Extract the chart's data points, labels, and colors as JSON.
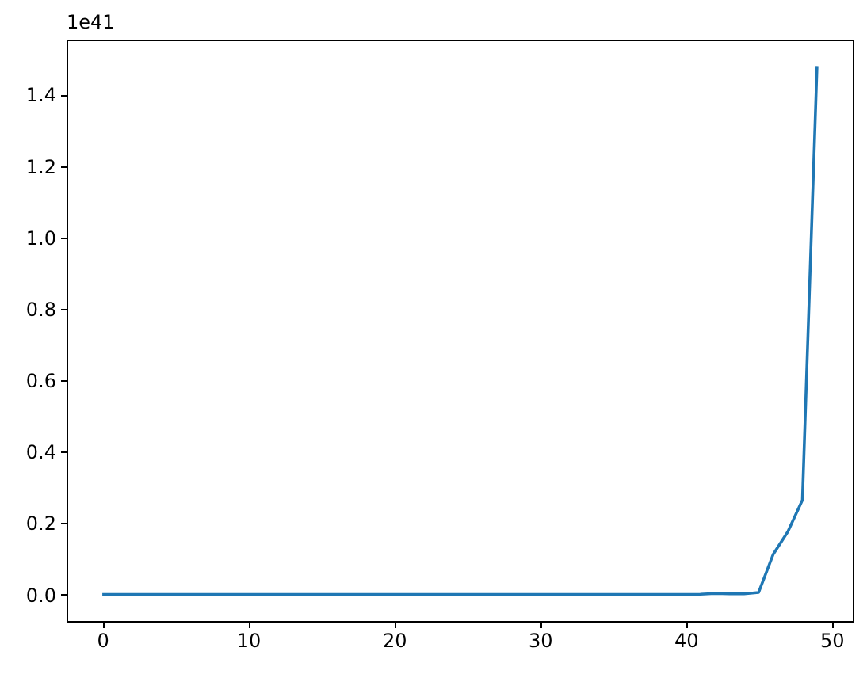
{
  "chart_data": {
    "type": "line",
    "x": [
      0,
      1,
      2,
      3,
      4,
      5,
      6,
      7,
      8,
      9,
      10,
      11,
      12,
      13,
      14,
      15,
      16,
      17,
      18,
      19,
      20,
      21,
      22,
      23,
      24,
      25,
      26,
      27,
      28,
      29,
      30,
      31,
      32,
      33,
      34,
      35,
      36,
      37,
      38,
      39,
      40,
      41,
      42,
      43,
      44,
      45,
      46,
      47,
      48,
      49
    ],
    "series": [
      {
        "color": "#1f77b4",
        "values": [
          0,
          0,
          0,
          0,
          0,
          0,
          0,
          0,
          0,
          0,
          0,
          0,
          0,
          0,
          0,
          0,
          0,
          0,
          0,
          0,
          0,
          0,
          0,
          0,
          0,
          0,
          0,
          0,
          0,
          0,
          0,
          0,
          0,
          0,
          0,
          0,
          0,
          0,
          0,
          0,
          0,
          0.001,
          0.003,
          0.002,
          0.002,
          0.006,
          0.113,
          0.176,
          0.265,
          1.48
        ]
      }
    ],
    "xlim": [
      -2.45,
      51.45
    ],
    "ylim": [
      -0.074,
      1.554
    ],
    "xticks": [
      0,
      10,
      20,
      30,
      40,
      50
    ],
    "yticks": [
      {
        "value": 0,
        "label": "0.0"
      },
      {
        "value": 0.2,
        "label": "0.2"
      },
      {
        "value": 0.4,
        "label": "0.4"
      },
      {
        "value": 0.6,
        "label": "0.6"
      },
      {
        "value": 0.8,
        "label": "0.8"
      },
      {
        "value": 1.0,
        "label": "1.0"
      },
      {
        "value": 1.2,
        "label": "1.2"
      },
      {
        "value": 1.4,
        "label": "1.4"
      }
    ],
    "annotations": [
      "1e41"
    ]
  }
}
